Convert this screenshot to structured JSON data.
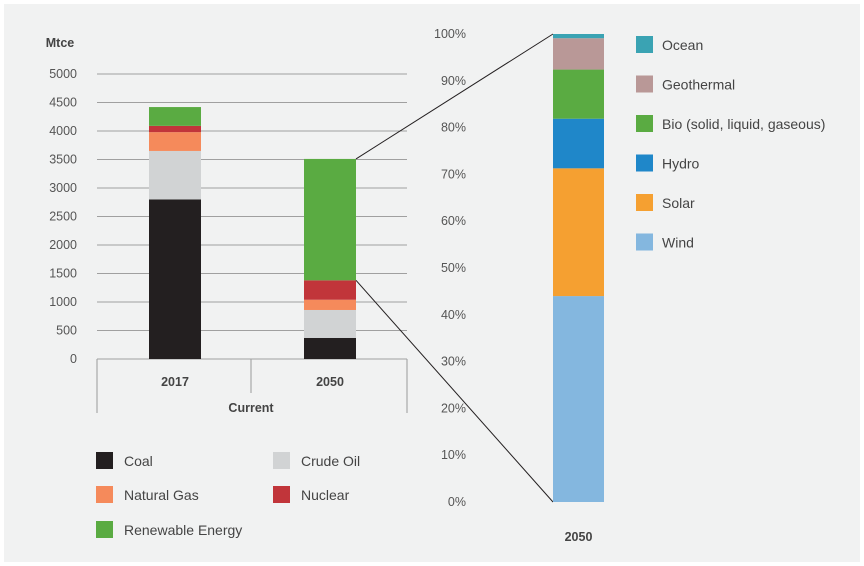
{
  "chart_data": [
    {
      "type": "bar",
      "stacked": true,
      "ylabel": "Mtce",
      "ylim": [
        0,
        5000
      ],
      "yticks": [
        "0",
        "500",
        "1000",
        "1500",
        "2000",
        "2500",
        "3000",
        "3500",
        "4000",
        "4500",
        "5000"
      ],
      "categories": [
        "2017",
        "2050"
      ],
      "xgroup_label": "Current",
      "grid": true,
      "legend_position": "bottom",
      "series": [
        {
          "name": "Coal",
          "color": "#231f20",
          "values": [
            2800,
            370
          ]
        },
        {
          "name": "Crude Oil",
          "color": "#d1d3d4",
          "values": [
            850,
            490
          ]
        },
        {
          "name": "Natural Gas",
          "color": "#f58a5b",
          "values": [
            330,
            180
          ]
        },
        {
          "name": "Nuclear",
          "color": "#c1353a",
          "values": [
            110,
            340
          ]
        },
        {
          "name": "Renewable Energy",
          "color": "#5aab42",
          "values": [
            330,
            2130
          ]
        }
      ]
    },
    {
      "type": "bar",
      "stacked": true,
      "ylim": [
        0,
        100
      ],
      "yticks": [
        "0%",
        "10%",
        "20%",
        "30%",
        "40%",
        "50%",
        "60%",
        "70%",
        "80%",
        "90%",
        "100%"
      ],
      "categories": [
        "2050"
      ],
      "legend_position": "right",
      "series": [
        {
          "name": "Wind",
          "color": "#84b7df",
          "values": [
            44
          ]
        },
        {
          "name": "Solar",
          "color": "#f5a031",
          "values": [
            27.3
          ]
        },
        {
          "name": "Hydro",
          "color": "#1f87c9",
          "values": [
            10.6
          ]
        },
        {
          "name": "Bio (solid, liquid, gaseous)",
          "color": "#5aab42",
          "values": [
            10.5
          ]
        },
        {
          "name": "Geothermal",
          "color": "#b99897",
          "values": [
            6.7
          ]
        },
        {
          "name": "Ocean",
          "color": "#3aa3b3",
          "values": [
            0.9
          ]
        }
      ]
    }
  ]
}
